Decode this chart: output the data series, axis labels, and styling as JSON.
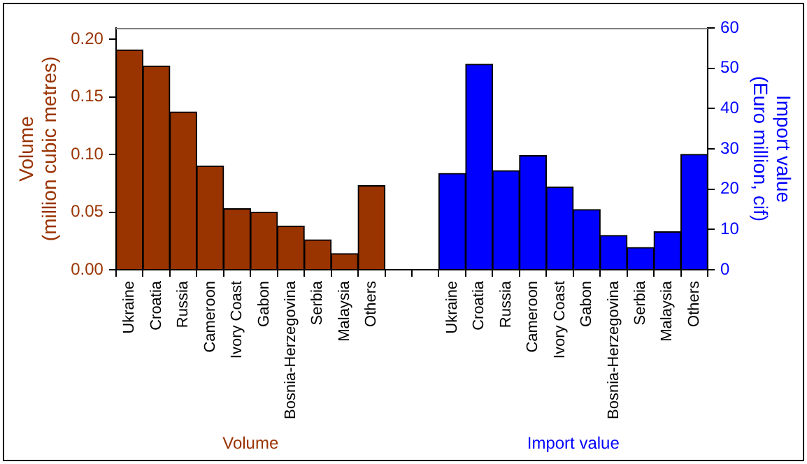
{
  "chart_data": {
    "type": "bar",
    "categories": [
      "Ukraine",
      "Croatia",
      "Russia",
      "Cameroon",
      "Ivory Coast",
      "Gabon",
      "Bosnia-Herzegovina",
      "Serbia",
      "Malaysia",
      "Others",
      null,
      null,
      "Ukraine",
      "Croatia",
      "Russia",
      "Cameroon",
      "Ivory Coast",
      "Gabon",
      "Bosnia-Herzegovina",
      "Serbia",
      "Malaysia",
      "Others"
    ],
    "series": [
      {
        "name": "Volume",
        "color": "#993300",
        "values": [
          0.191,
          0.177,
          0.137,
          0.09,
          0.053,
          0.05,
          0.038,
          0.026,
          0.014,
          0.073,
          null,
          null,
          null,
          null,
          null,
          null,
          null,
          null,
          null,
          null,
          null,
          null
        ]
      },
      {
        "name": "Import value",
        "color": "#0000ff",
        "axis": "y2",
        "values": [
          null,
          null,
          null,
          null,
          null,
          null,
          null,
          null,
          null,
          null,
          null,
          null,
          23.9,
          51,
          24.6,
          28.3,
          20.5,
          14.9,
          8.5,
          5.5,
          9.4,
          28.6
        ]
      }
    ],
    "ylabel": "Volume\n(million cubic metres)",
    "y2label": "Import value\n(Euro million, cif)",
    "ylim": [
      0,
      0.21
    ],
    "yticks": [
      {
        "value": 0,
        "label": "0.00"
      },
      {
        "value": 0.05,
        "label": "0.05"
      },
      {
        "value": 0.1,
        "label": "0.10"
      },
      {
        "value": 0.15,
        "label": "0.15"
      },
      {
        "value": 0.2,
        "label": "0.20"
      }
    ],
    "y2lim": [
      0,
      60
    ],
    "y2ticks": [
      0,
      10,
      20,
      30,
      40,
      50,
      60
    ],
    "grid": false,
    "legend": false
  }
}
